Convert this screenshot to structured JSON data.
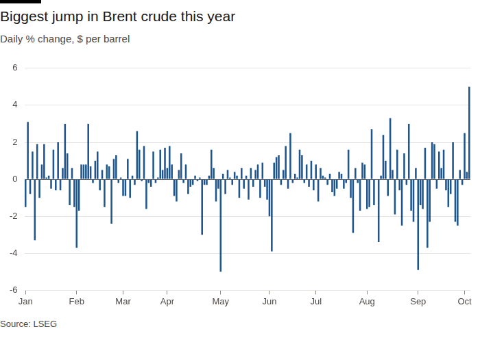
{
  "chart_data": {
    "type": "bar",
    "title": "Biggest jump in Brent crude this year",
    "subtitle": "Daily % change, $ per barrel",
    "source": "Source: LSEG",
    "categories": [
      "Jan",
      null,
      null,
      null,
      null,
      null,
      null,
      null,
      null,
      null,
      null,
      null,
      null,
      null,
      null,
      null,
      null,
      null,
      null,
      null,
      null,
      null,
      "Feb",
      null,
      null,
      null,
      null,
      null,
      null,
      null,
      null,
      null,
      null,
      null,
      null,
      null,
      null,
      null,
      null,
      null,
      null,
      null,
      "Mar",
      null,
      null,
      null,
      null,
      null,
      null,
      null,
      null,
      null,
      null,
      null,
      null,
      null,
      null,
      null,
      null,
      null,
      null,
      "Apr",
      null,
      null,
      null,
      null,
      null,
      null,
      null,
      null,
      null,
      null,
      null,
      null,
      null,
      null,
      null,
      null,
      null,
      null,
      null,
      null,
      null,
      null,
      "May",
      null,
      null,
      null,
      null,
      null,
      null,
      null,
      null,
      null,
      null,
      null,
      null,
      null,
      null,
      null,
      null,
      null,
      null,
      null,
      null,
      "Jun",
      null,
      null,
      null,
      null,
      null,
      null,
      null,
      null,
      null,
      null,
      null,
      null,
      null,
      null,
      null,
      null,
      null,
      null,
      null,
      "Jul",
      null,
      null,
      null,
      null,
      null,
      null,
      null,
      null,
      null,
      null,
      null,
      null,
      null,
      null,
      null,
      null,
      null,
      null,
      null,
      null,
      null,
      "Aug",
      null,
      null,
      null,
      null,
      null,
      null,
      null,
      null,
      null,
      null,
      null,
      null,
      null,
      null,
      null,
      null,
      null,
      null,
      null,
      null,
      null,
      "Sep",
      null,
      null,
      null,
      null,
      null,
      null,
      null,
      null,
      null,
      null,
      null,
      null,
      null,
      null,
      null,
      null,
      null,
      null,
      null,
      "Oct",
      null,
      null
    ],
    "values": [
      -1.5,
      3.1,
      -0.8,
      1.5,
      -3.3,
      1.9,
      -1.0,
      0.8,
      1.9,
      0.1,
      0.2,
      -0.5,
      1.6,
      -0.6,
      2.0,
      -0.6,
      0.6,
      3.0,
      1.4,
      -1.4,
      0.6,
      -1.5,
      -3.7,
      -1.7,
      0.8,
      0.8,
      0.8,
      3.0,
      0.7,
      -0.2,
      1.0,
      1.5,
      -0.6,
      0.5,
      -1.5,
      0.8,
      0.7,
      -2.4,
      1.1,
      1.3,
      -0.2,
      0.1,
      -0.9,
      -0.9,
      1.1,
      -1.0,
      0.2,
      -0.3,
      2.6,
      1.6,
      -0.1,
      1.8,
      -1.6,
      -0.2,
      -0.4,
      1.5,
      -0.2,
      0.1,
      1.6,
      0.5,
      1.7,
      0.6,
      1.8,
      0.8,
      -0.9,
      -1.2,
      0.5,
      1.4,
      -0.2,
      0.8,
      -0.8,
      -0.4,
      -0.3,
      0.2,
      -0.1,
      0.1,
      -3.0,
      -0.3,
      -0.3,
      0.2,
      1.6,
      0.6,
      -1.2,
      -0.5,
      -5.0,
      0.3,
      -0.8,
      0.5,
      0.1,
      -0.3,
      0.4,
      0.2,
      -1.0,
      0.6,
      -0.5,
      0.2,
      -1.1,
      0.6,
      -0.4,
      0.5,
      0.8,
      -1.0,
      0.9,
      -0.4,
      -1.1,
      -2.0,
      -3.9,
      0.9,
      1.2,
      1.3,
      -0.3,
      0.5,
      1.8,
      -0.5,
      2.5,
      -0.2,
      0.3,
      0.1,
      1.6,
      1.3,
      -0.2,
      0.8,
      -0.4,
      1.0,
      -0.6,
      0.8,
      -1.2,
      0.6,
      0.2,
      0.1,
      -0.3,
      0.3,
      -0.7,
      -0.9,
      -0.5,
      0.4,
      0.3,
      -0.5,
      -0.2,
      1.6,
      -1.0,
      -2.9,
      0.6,
      -0.2,
      -1.7,
      0.9,
      0.8,
      -1.6,
      -1.5,
      2.7,
      -1.4,
      0.0,
      -3.4,
      0.2,
      2.4,
      1.0,
      -0.9,
      3.3,
      0.5,
      -1.9,
      1.6,
      -0.6,
      -2.5,
      1.4,
      -0.3,
      3.0,
      -1.7,
      -2.3,
      0.6,
      -4.9,
      -1.4,
      -1.6,
      1.7,
      -3.7,
      -2.3,
      2.0,
      1.9,
      -0.5,
      1.5,
      0.6,
      1.6,
      -0.6,
      -1.5,
      -0.8,
      2.0,
      -2.3,
      -2.5,
      0.5,
      -0.3,
      2.5,
      0.4,
      5.0
    ],
    "color": "#1e558c",
    "ylim": [
      -6,
      6
    ],
    "yticks": [
      -6,
      -4,
      -2,
      0,
      2,
      4,
      6
    ],
    "grid": true
  }
}
